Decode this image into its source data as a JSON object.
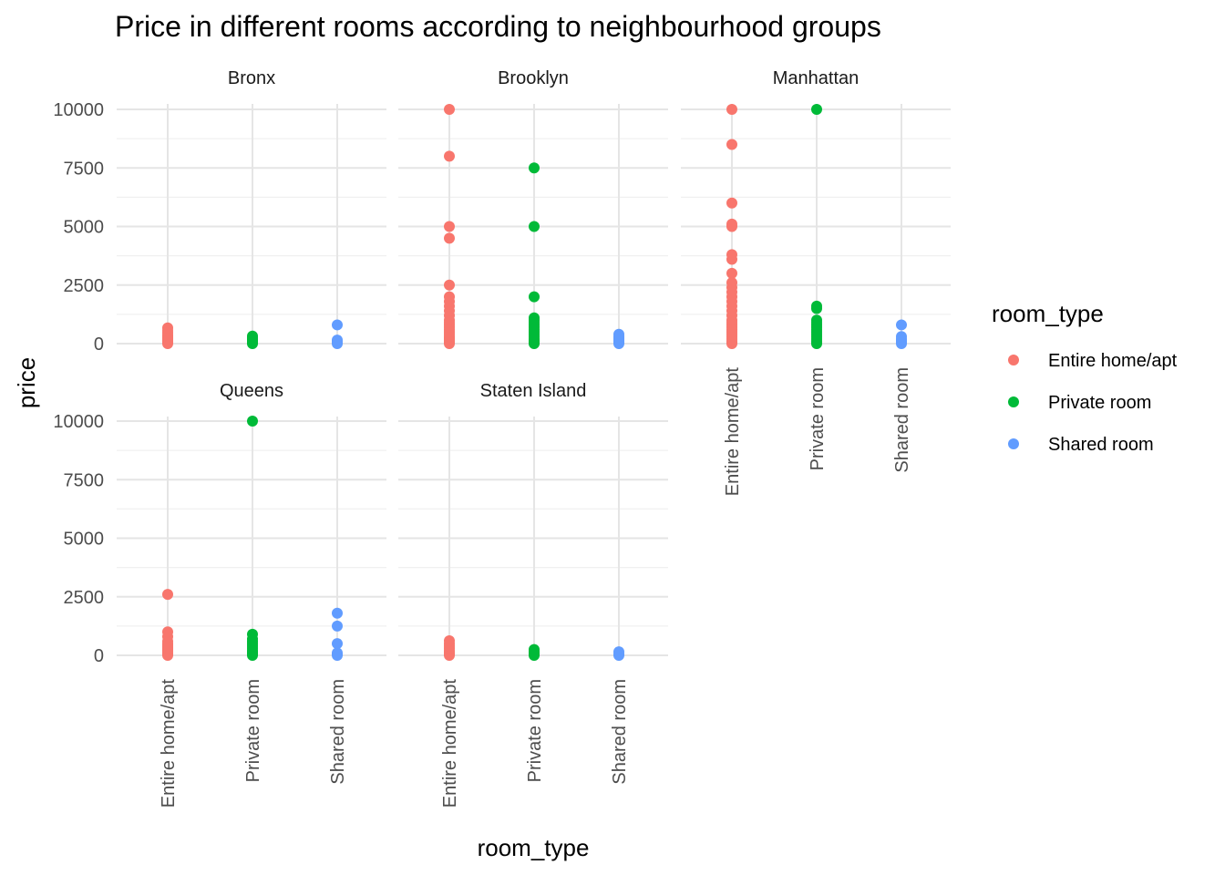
{
  "chart_data": {
    "type": "scatter",
    "title": "Price in different rooms according to neighbourhood groups",
    "xlabel": "room_type",
    "ylabel": "price",
    "categories": [
      "Entire home/apt",
      "Private room",
      "Shared room"
    ],
    "y_ticks": [
      "0",
      "2500",
      "5000",
      "7500",
      "10000"
    ],
    "ylim": [
      0,
      10000
    ],
    "grid": true,
    "legend": {
      "title": "room_type",
      "position": "right",
      "items": [
        {
          "label": "Entire home/apt",
          "color": "#F8766D"
        },
        {
          "label": "Private room",
          "color": "#00BA38"
        },
        {
          "label": "Shared room",
          "color": "#619CFF"
        }
      ]
    },
    "facets": [
      {
        "name": "Bronx",
        "series": [
          {
            "category": "Entire home/apt",
            "values": [
              0,
              50,
              100,
              150,
              200,
              250,
              300,
              350,
              450,
              550,
              670
            ]
          },
          {
            "category": "Private room",
            "values": [
              0,
              40,
              80,
              120,
              160,
              200,
              260,
              320
            ]
          },
          {
            "category": "Shared room",
            "values": [
              0,
              50,
              100,
              150,
              800
            ]
          }
        ]
      },
      {
        "name": "Brooklyn",
        "series": [
          {
            "category": "Entire home/apt",
            "values": [
              0,
              50,
              100,
              150,
              200,
              250,
              300,
              400,
              500,
              600,
              700,
              800,
              900,
              1000,
              1200,
              1400,
              1600,
              1800,
              2000,
              2500,
              4500,
              5000,
              8000,
              10000
            ]
          },
          {
            "category": "Private room",
            "values": [
              0,
              50,
              100,
              150,
              200,
              300,
              400,
              500,
              600,
              700,
              800,
              900,
              1000,
              1100,
              2000,
              5000,
              7500
            ]
          },
          {
            "category": "Shared room",
            "values": [
              0,
              50,
              100,
              150,
              200,
              250,
              300,
              400
            ]
          }
        ]
      },
      {
        "name": "Manhattan",
        "series": [
          {
            "category": "Entire home/apt",
            "values": [
              0,
              50,
              100,
              200,
              300,
              400,
              500,
              600,
              700,
              800,
              900,
              1000,
              1200,
              1400,
              1600,
              1800,
              2000,
              2200,
              2400,
              2600,
              3000,
              3600,
              3800,
              5000,
              5100,
              6000,
              8500,
              10000
            ]
          },
          {
            "category": "Private room",
            "values": [
              0,
              50,
              100,
              200,
              300,
              400,
              500,
              600,
              700,
              800,
              900,
              1000,
              1500,
              1600,
              10000
            ]
          },
          {
            "category": "Shared room",
            "values": [
              0,
              50,
              100,
              150,
              200,
              300,
              800
            ]
          }
        ]
      },
      {
        "name": "Queens",
        "series": [
          {
            "category": "Entire home/apt",
            "values": [
              0,
              50,
              100,
              150,
              200,
              250,
              300,
              350,
              400,
              450,
              500,
              600,
              800,
              1000,
              2600
            ]
          },
          {
            "category": "Private room",
            "values": [
              0,
              50,
              100,
              150,
              200,
              300,
              400,
              500,
              600,
              700,
              900,
              10000
            ]
          },
          {
            "category": "Shared room",
            "values": [
              0,
              50,
              100,
              500,
              1250,
              1800
            ]
          }
        ]
      },
      {
        "name": "Staten Island",
        "series": [
          {
            "category": "Entire home/apt",
            "values": [
              0,
              50,
              100,
              150,
              200,
              300,
              400,
              500,
              625
            ]
          },
          {
            "category": "Private room",
            "values": [
              0,
              50,
              100,
              150,
              250
            ]
          },
          {
            "category": "Shared room",
            "values": [
              0,
              50,
              150
            ]
          }
        ]
      }
    ]
  }
}
